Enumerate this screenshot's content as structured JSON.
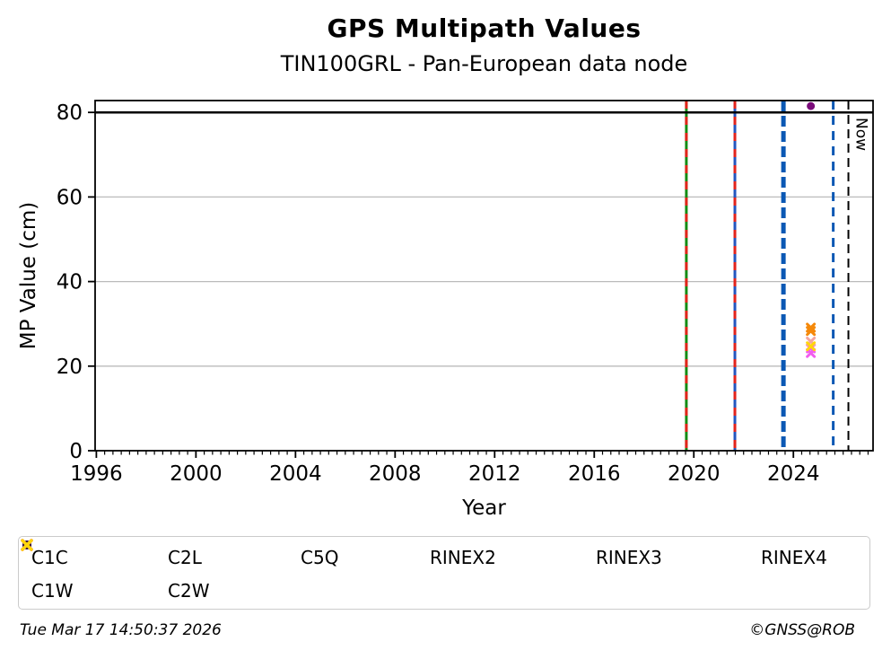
{
  "chart_data": {
    "type": "scatter",
    "title": "GPS Multipath Values",
    "subtitle": "TIN100GRL - Pan-European data node",
    "xlabel": "Year",
    "ylabel": "MP Value (cm)",
    "xlim": [
      1995.95,
      2027.2
    ],
    "ylim": [
      0,
      82.8
    ],
    "x_major_ticks": [
      1996,
      2000,
      2004,
      2008,
      2012,
      2016,
      2020,
      2024
    ],
    "x_minor_per_major": 12,
    "y_ticks": [
      0,
      20,
      40,
      60,
      80
    ],
    "grid": "horizontal",
    "grid_color": "#bbbbbb",
    "threshold_line": {
      "y": 80,
      "color": "#000000"
    },
    "series": [
      {
        "name": "C1C",
        "marker": "x",
        "color": "#e3241b",
        "points": []
      },
      {
        "name": "C2L",
        "marker": "x",
        "color": "#f5890a",
        "points": [
          [
            2024.7,
            29.1
          ],
          [
            2024.7,
            28.3
          ]
        ]
      },
      {
        "name": "C5Q",
        "marker": "x",
        "color": "#f25def",
        "points": [
          [
            2024.7,
            24.2
          ],
          [
            2024.7,
            23.1
          ]
        ]
      },
      {
        "name": "RINEX2",
        "marker": "circle",
        "color": "#988fce",
        "points": []
      },
      {
        "name": "RINEX3",
        "marker": "circle",
        "color": "#7a0b7a",
        "points": [
          [
            2024.7,
            81.5
          ]
        ]
      },
      {
        "name": "RINEX4",
        "marker": "circle",
        "color": "#2b0d36",
        "points": []
      },
      {
        "name": "C1W",
        "marker": "x",
        "color": "#f4a6a0",
        "points": [
          [
            2024.7,
            25.8
          ]
        ]
      },
      {
        "name": "C2W",
        "marker": "x",
        "color": "#ffd60a",
        "points": [
          [
            2024.7,
            24.7
          ]
        ]
      }
    ],
    "vlines": [
      {
        "x": 2019.7,
        "color": "#148c14",
        "width": 3,
        "style": "solid",
        "overlay_color": "#e3241b",
        "overlay_dash": [
          9,
          9
        ],
        "label": ""
      },
      {
        "x": 2021.65,
        "color": "#2456be",
        "width": 3,
        "style": "solid",
        "overlay_color": "#e3241b",
        "overlay_dash": [
          9,
          9
        ],
        "label": ""
      },
      {
        "x": 2023.6,
        "color": "#0b58b4",
        "width": 5,
        "style": "dashed",
        "dash": [
          12,
          5
        ],
        "label": ""
      },
      {
        "x": 2025.6,
        "color": "#0b58b4",
        "width": 3,
        "style": "dashed",
        "dash": [
          10,
          7
        ],
        "label": ""
      },
      {
        "x": 2026.21,
        "color": "#000000",
        "width": 2,
        "style": "dashed",
        "dash": [
          10,
          6
        ],
        "label": "Now"
      }
    ]
  },
  "legend": {
    "items": [
      "C1C",
      "C2L",
      "C5Q",
      "RINEX2",
      "RINEX3",
      "RINEX4",
      "C1W",
      "C2W"
    ]
  },
  "footer": {
    "left": "Tue Mar 17 14:50:37 2026",
    "right": "©GNSS@ROB"
  }
}
